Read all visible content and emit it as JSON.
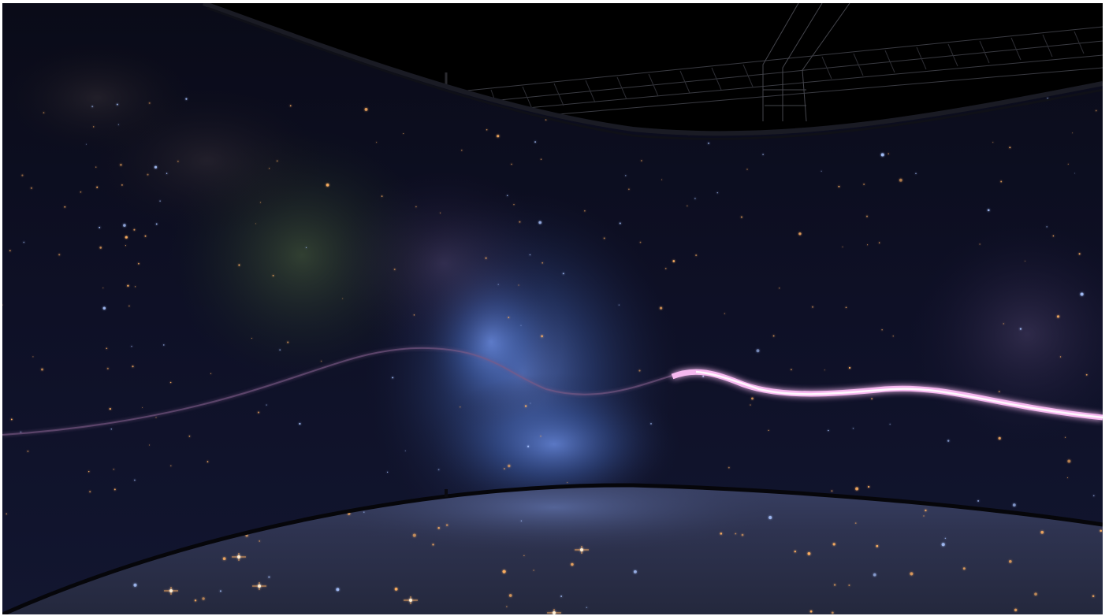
{
  "scene": {
    "description_free": true,
    "colors": {
      "sky": "#000000",
      "wall_base": "#0b0c1e",
      "nebula_blue": "#3f63b8",
      "nebula_green": "#4b6a3a",
      "ribbon": "#f4b2ee",
      "floor": "#323753",
      "rail": "#07070b",
      "truss": "#3a3b40",
      "star_warm": "#ffb061",
      "star_cool": "#a9c4ff"
    },
    "layers": [
      {
        "name": "sky-backdrop"
      },
      {
        "name": "overhead-truss"
      },
      {
        "name": "curved-screen-wall"
      },
      {
        "name": "light-ribbon"
      },
      {
        "name": "reflective-floor"
      }
    ]
  }
}
